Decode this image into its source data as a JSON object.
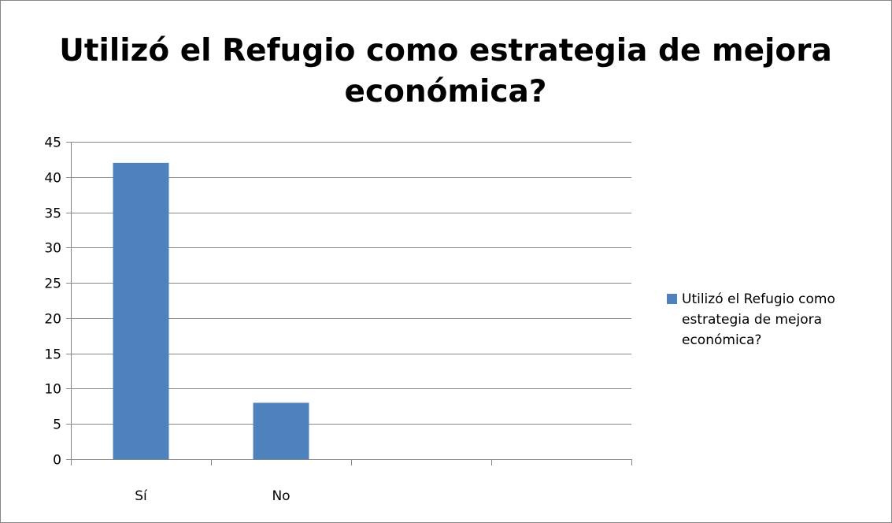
{
  "chart_data": {
    "type": "bar",
    "title": "Utilizó el Refugio como estrategia de mejora económica?",
    "categories": [
      "Sí",
      "No",
      "",
      ""
    ],
    "series": [
      {
        "name": "Utilizó el Refugio como estrategia de mejora económica?",
        "values": [
          42,
          8,
          null,
          null
        ],
        "color": "#4F81BD"
      }
    ],
    "xlabel": "",
    "ylabel": "",
    "ylim": [
      0,
      45
    ],
    "yticks": [
      0,
      5,
      10,
      15,
      20,
      25,
      30,
      35,
      40,
      45
    ],
    "grid": true,
    "legend_position": "right"
  },
  "colors": {
    "bar": "#4F81BD",
    "gridline": "#868686",
    "axis": "#868686",
    "border": "#878787"
  }
}
